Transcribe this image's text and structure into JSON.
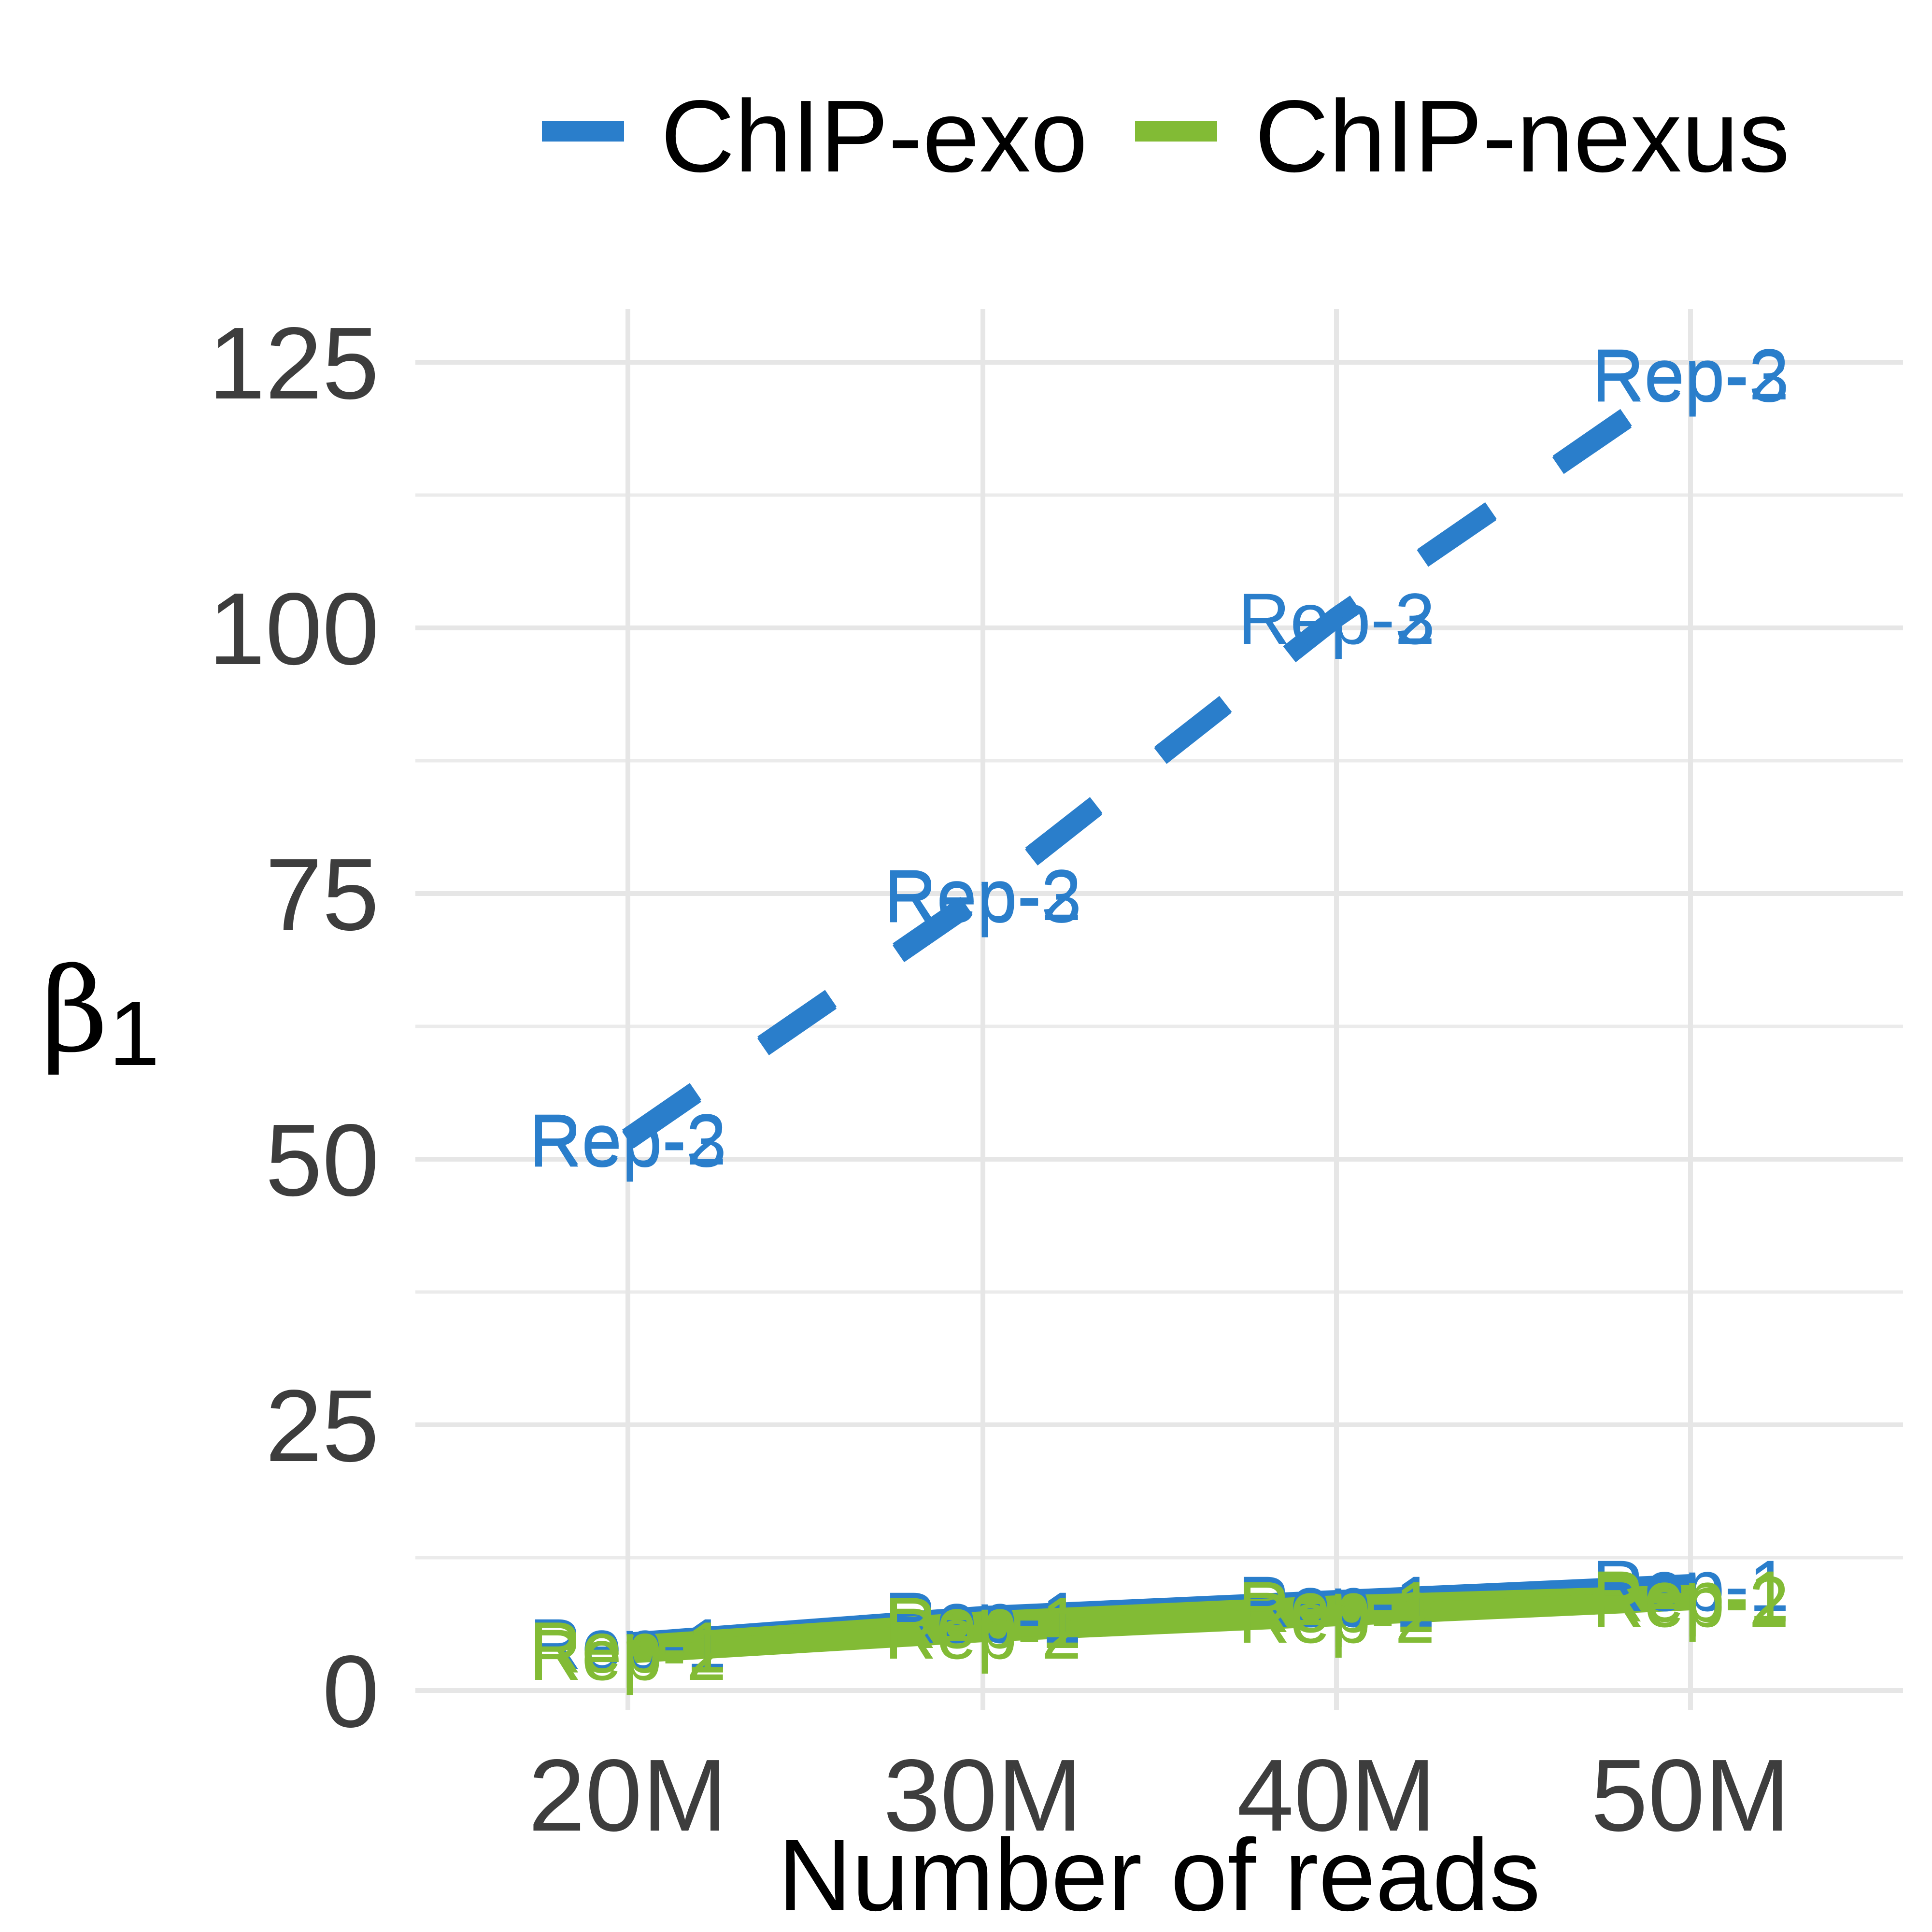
{
  "chart_data": {
    "type": "line",
    "xlabel": "Number of reads",
    "ylabel": "β",
    "ylabel_subscript": "1",
    "x_categories": [
      "20M",
      "30M",
      "40M",
      "50M"
    ],
    "y_ticks": [
      "0",
      "25",
      "50",
      "75",
      "100",
      "125"
    ],
    "ylim": [
      -2,
      130
    ],
    "grid": true,
    "legend": {
      "placement": "top-right",
      "entries": [
        {
          "label": "ChIP-exo",
          "color": "#2a7ecb"
        },
        {
          "label": "ChIP-nexus",
          "color": "#82bb35"
        }
      ]
    },
    "series": [
      {
        "group": "ChIP-exo",
        "replicate": "Rep-2",
        "label": "Rep-2",
        "color": "#2a7ecb",
        "dashed": true,
        "values": [
          52,
          75,
          101,
          124
        ]
      },
      {
        "group": "ChIP-exo",
        "replicate": "Rep-3",
        "label": "Rep-3",
        "color": "#2a7ecb",
        "dashed": true,
        "values": [
          51.8,
          74.8,
          101,
          123.8
        ]
      },
      {
        "group": "ChIP-exo",
        "replicate": "Rep-1",
        "label": "Rep-1",
        "color": "#2a7ecb",
        "dashed": false,
        "values": [
          4.5,
          7,
          8.5,
          10
        ]
      },
      {
        "group": "ChIP-nexus",
        "replicate": "Rep-1",
        "label": "Rep-1",
        "color": "#82bb35",
        "dashed": false,
        "values": [
          4.2,
          6.5,
          8,
          9
        ]
      },
      {
        "group": "ChIP-nexus",
        "replicate": "Rep-2",
        "label": "Rep-2",
        "color": "#82bb35",
        "dashed": false,
        "values": [
          3.5,
          5.5,
          7,
          8.5
        ]
      }
    ]
  }
}
